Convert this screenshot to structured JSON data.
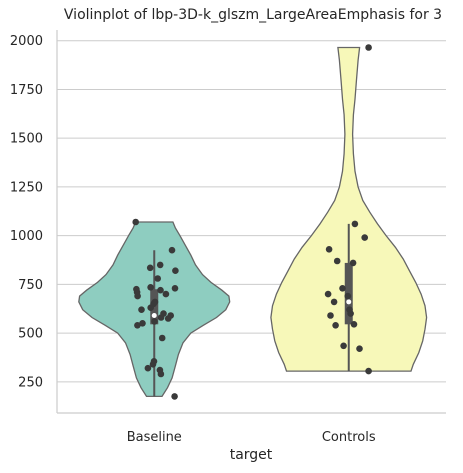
{
  "chart_data": {
    "type": "violin",
    "title": "Violinplot of lbp-3D-k_glszm_LargeAreaEmphasis for 3",
    "xlabel": "target",
    "ylabel": "",
    "ylim": [
      90,
      2055
    ],
    "yticks": [
      250,
      500,
      750,
      1000,
      1250,
      1500,
      1750,
      2000
    ],
    "grid": "horizontal",
    "categories": [
      "Baseline",
      "Controls"
    ],
    "colors": [
      "#8ecdc0",
      "#f7f8b9"
    ],
    "series": [
      {
        "category": "Baseline",
        "min": 175,
        "max": 1070,
        "q1": 545,
        "median": 590,
        "q3": 725,
        "whisker_low": 175,
        "whisker_high": 925,
        "density": [
          [
            175,
            0.1
          ],
          [
            220,
            0.17
          ],
          [
            270,
            0.23
          ],
          [
            330,
            0.27
          ],
          [
            390,
            0.31
          ],
          [
            450,
            0.37
          ],
          [
            500,
            0.47
          ],
          [
            540,
            0.63
          ],
          [
            580,
            0.8
          ],
          [
            620,
            0.92
          ],
          [
            660,
            0.97
          ],
          [
            690,
            0.96
          ],
          [
            720,
            0.87
          ],
          [
            760,
            0.73
          ],
          [
            800,
            0.62
          ],
          [
            850,
            0.53
          ],
          [
            900,
            0.47
          ],
          [
            950,
            0.4
          ],
          [
            1000,
            0.33
          ],
          [
            1040,
            0.27
          ],
          [
            1070,
            0.24
          ]
        ],
        "points": [
          175,
          290,
          310,
          320,
          340,
          355,
          475,
          540,
          550,
          560,
          575,
          580,
          590,
          600,
          620,
          630,
          650,
          660,
          690,
          700,
          710,
          720,
          725,
          730,
          735,
          780,
          820,
          835,
          850,
          925,
          1070
        ]
      },
      {
        "category": "Controls",
        "min": 305,
        "max": 1965,
        "q1": 545,
        "median": 660,
        "q3": 860,
        "whisker_low": 305,
        "whisker_high": 1060,
        "density": [
          [
            305,
            0.8
          ],
          [
            340,
            0.83
          ],
          [
            400,
            0.9
          ],
          [
            460,
            0.95
          ],
          [
            520,
            0.98
          ],
          [
            580,
            1.0
          ],
          [
            640,
            0.98
          ],
          [
            700,
            0.93
          ],
          [
            760,
            0.86
          ],
          [
            820,
            0.78
          ],
          [
            880,
            0.7
          ],
          [
            940,
            0.6
          ],
          [
            1000,
            0.48
          ],
          [
            1060,
            0.37
          ],
          [
            1120,
            0.27
          ],
          [
            1180,
            0.18
          ],
          [
            1250,
            0.12
          ],
          [
            1330,
            0.08
          ],
          [
            1420,
            0.06
          ],
          [
            1520,
            0.05
          ],
          [
            1620,
            0.06
          ],
          [
            1700,
            0.08
          ],
          [
            1800,
            0.1
          ],
          [
            1900,
            0.12
          ],
          [
            1965,
            0.14
          ]
        ],
        "points": [
          305,
          420,
          435,
          540,
          545,
          590,
          600,
          620,
          660,
          690,
          700,
          730,
          860,
          870,
          930,
          990,
          1060,
          1965
        ]
      }
    ]
  }
}
